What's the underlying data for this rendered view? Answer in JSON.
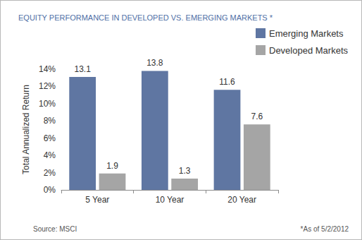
{
  "chart_data": {
    "type": "bar",
    "title": "EQUITY PERFORMANCE IN DEVELOPED VS. EMERGING MARKETS *",
    "y_label": "Total Annualized Return",
    "categories": [
      "5 Year",
      "10 Year",
      "20 Year"
    ],
    "series": [
      {
        "name": "Emerging Markets",
        "color": "#5f76a2",
        "values": [
          13.1,
          13.8,
          11.6
        ]
      },
      {
        "name": "Developed Markets",
        "color": "#a5a5a5",
        "values": [
          1.9,
          1.3,
          7.6
        ]
      }
    ],
    "ylim": [
      0,
      14
    ],
    "yticks": [
      {
        "value": 0,
        "label": "0%"
      },
      {
        "value": 2,
        "label": "2%"
      },
      {
        "value": 4,
        "label": "4%"
      },
      {
        "value": 6,
        "label": "6%"
      },
      {
        "value": 8,
        "label": "8%"
      },
      {
        "value": 10,
        "label": "10%"
      },
      {
        "value": 12,
        "label": "12%"
      },
      {
        "value": 14,
        "label": "14%"
      }
    ],
    "grid": false,
    "legend": "top-right",
    "data_labels": true,
    "annotations": [
      "Source: MSCI",
      "*As of 5/2/2012"
    ]
  }
}
